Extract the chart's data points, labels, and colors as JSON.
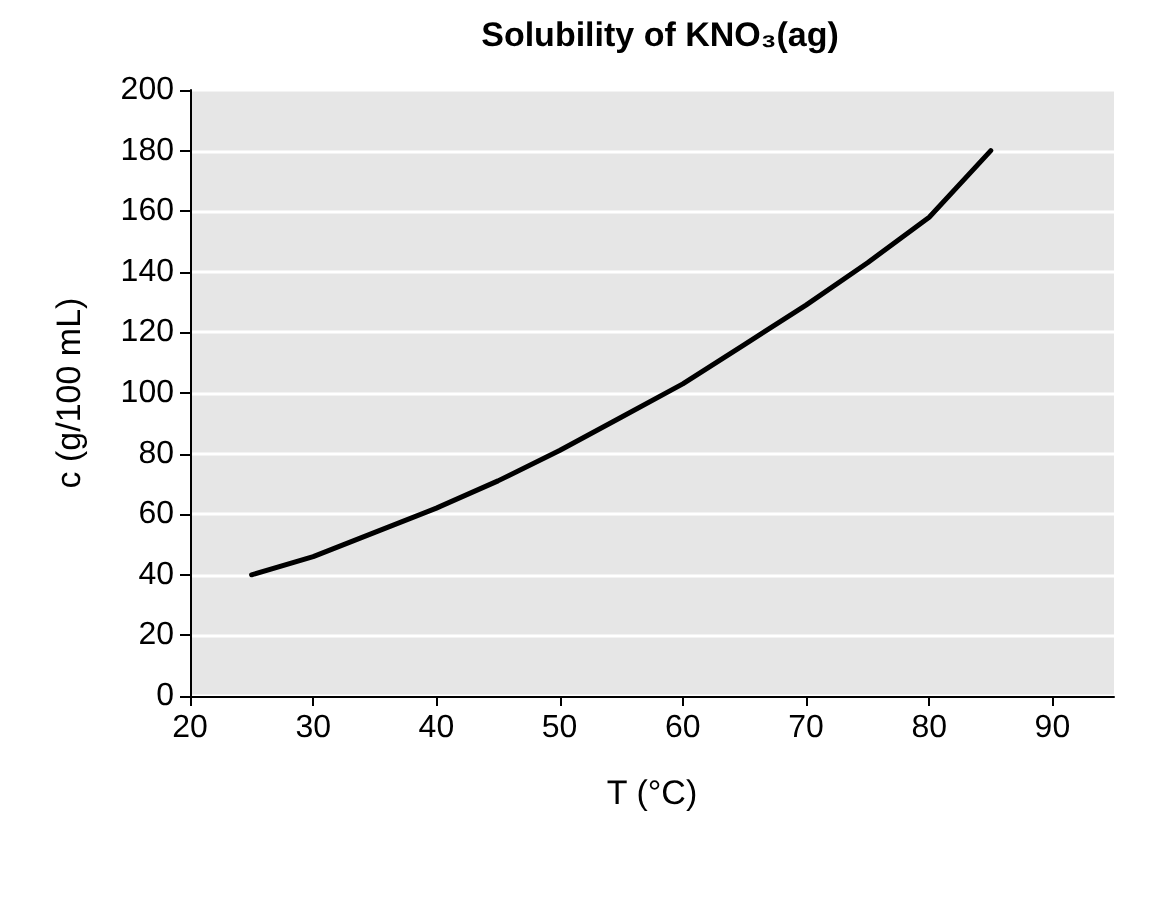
{
  "chart_data": {
    "type": "line",
    "title": "Solubility of KNO₃(ag)",
    "xlabel": "T (°C)",
    "ylabel": "c (g/100 mL)",
    "series": [
      {
        "color": "#000000",
        "x": [
          25,
          30,
          35,
          40,
          45,
          50,
          55,
          60,
          65,
          70,
          75,
          80,
          85
        ],
        "values": [
          40,
          46,
          54,
          62,
          71,
          81,
          92,
          103,
          116,
          129,
          143,
          158,
          180
        ]
      }
    ],
    "xlim": [
      20,
      95
    ],
    "xticks": [
      20,
      30,
      40,
      50,
      60,
      70,
      80,
      90
    ],
    "ylim": [
      0,
      200
    ],
    "yticks": [
      0,
      20,
      40,
      60,
      80,
      100,
      120,
      140,
      160,
      180,
      200
    ],
    "grid": "y",
    "marker": "none",
    "line_style": "solid"
  }
}
